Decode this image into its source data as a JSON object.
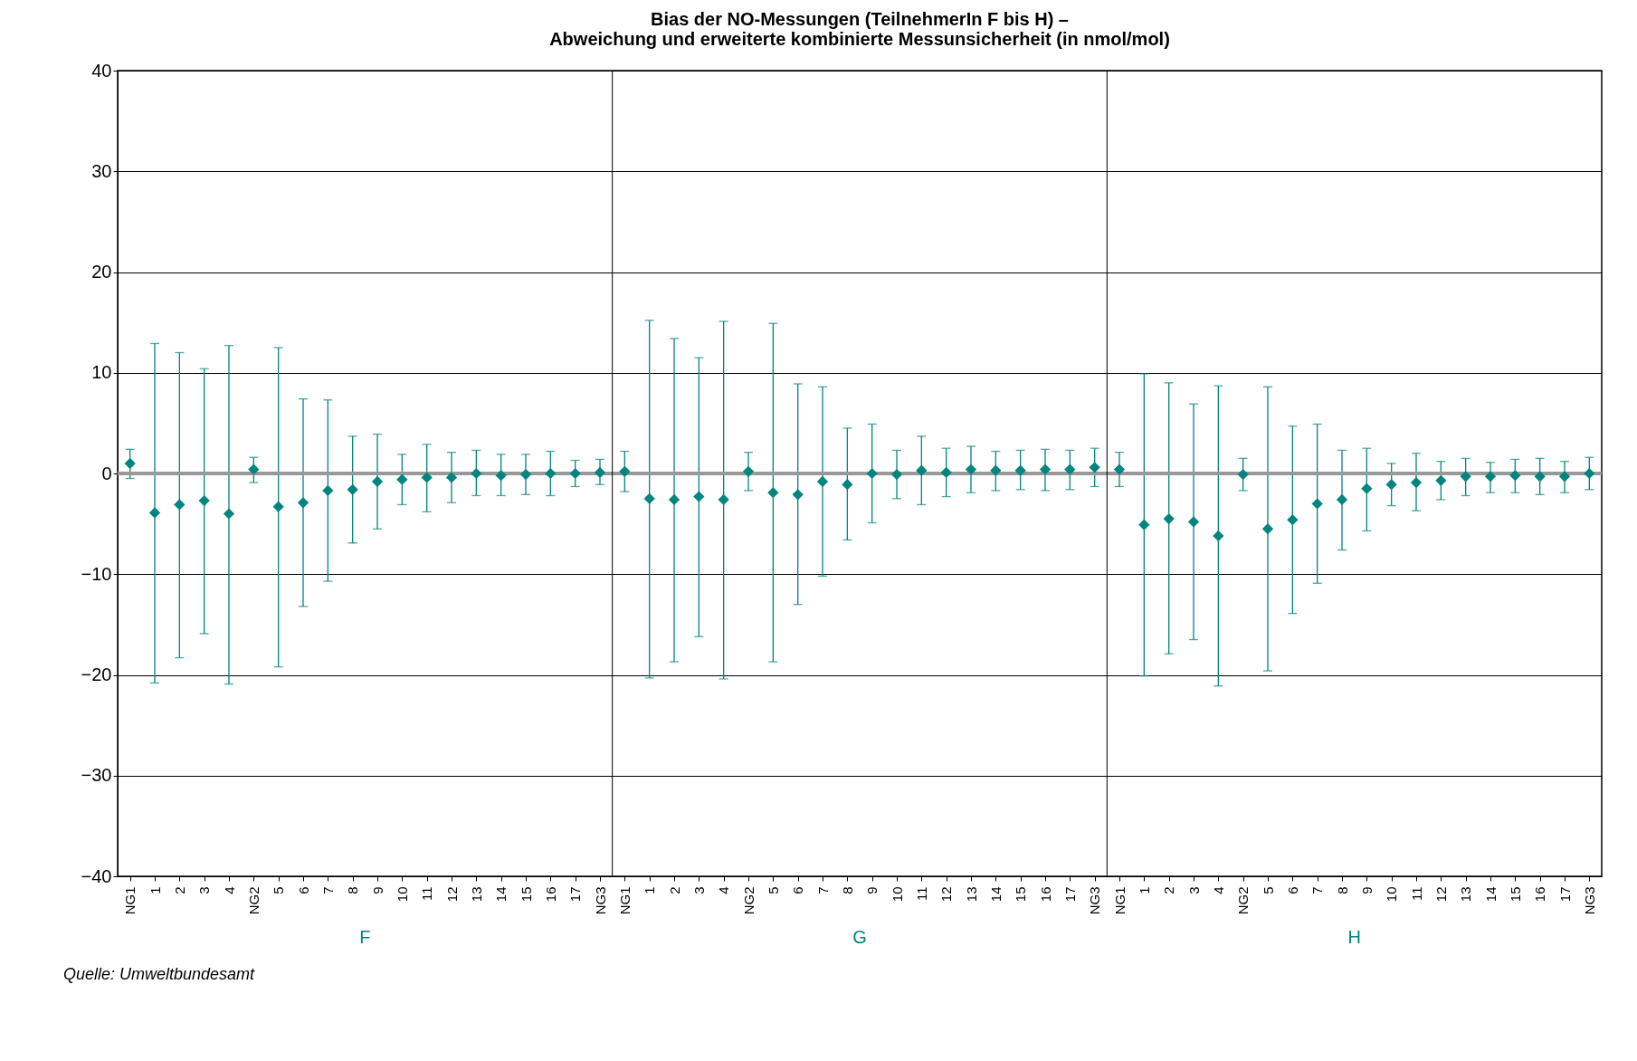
{
  "chart_data": {
    "type": "scatter",
    "title": "Bias der NO-Messungen (TeilnehmerIn F bis H) –\nAbweichung und erweiterte kombinierte Messunsicherheit (in nmol/mol)",
    "categories": [
      "NG1",
      "1",
      "2",
      "3",
      "4",
      "NG2",
      "5",
      "6",
      "7",
      "8",
      "9",
      "10",
      "11",
      "12",
      "13",
      "14",
      "15",
      "16",
      "17",
      "NG3",
      "NG1",
      "1",
      "2",
      "3",
      "4",
      "NG2",
      "5",
      "6",
      "7",
      "8",
      "9",
      "10",
      "11",
      "12",
      "13",
      "14",
      "15",
      "16",
      "17",
      "NG3",
      "NG1",
      "1",
      "2",
      "3",
      "4",
      "NG2",
      "5",
      "6",
      "7",
      "8",
      "9",
      "10",
      "11",
      "12",
      "13",
      "14",
      "15",
      "16",
      "17",
      "NG3"
    ],
    "series": [
      {
        "color": "#00857f",
        "values": [
          1.0,
          -3.9,
          -3.1,
          -2.7,
          -4.0,
          0.4,
          -3.3,
          -2.9,
          -1.7,
          -1.6,
          -0.8,
          -0.6,
          -0.4,
          -0.4,
          0.0,
          -0.2,
          -0.1,
          0.0,
          0.0,
          0.1,
          0.2,
          -2.5,
          -2.6,
          -2.3,
          -2.6,
          0.2,
          -1.9,
          -2.1,
          -0.8,
          -1.1,
          0.0,
          -0.1,
          0.3,
          0.1,
          0.4,
          0.3,
          0.3,
          0.4,
          0.4,
          0.6,
          0.4,
          -5.1,
          -4.5,
          -4.8,
          -6.2,
          -0.1,
          -5.5,
          -4.6,
          -3.0,
          -2.6,
          -1.5,
          -1.1,
          -0.9,
          -0.7,
          -0.3,
          -0.3,
          -0.2,
          -0.3,
          -0.3,
          0.0
        ],
        "errors": [
          [
            -0.5,
            2.4
          ],
          [
            -20.8,
            12.9
          ],
          [
            -18.3,
            12.0
          ],
          [
            -15.9,
            10.4
          ],
          [
            -20.9,
            12.7
          ],
          [
            -0.9,
            1.6
          ],
          [
            -19.2,
            12.5
          ],
          [
            -13.2,
            7.4
          ],
          [
            -10.7,
            7.3
          ],
          [
            -6.9,
            3.7
          ],
          [
            -5.5,
            3.9
          ],
          [
            -3.1,
            1.9
          ],
          [
            -3.8,
            2.9
          ],
          [
            -2.9,
            2.1
          ],
          [
            -2.2,
            2.3
          ],
          [
            -2.2,
            1.9
          ],
          [
            -2.1,
            1.9
          ],
          [
            -2.2,
            2.2
          ],
          [
            -1.3,
            1.3
          ],
          [
            -1.1,
            1.4
          ],
          [
            -1.8,
            2.2
          ],
          [
            -20.3,
            15.2
          ],
          [
            -18.7,
            13.4
          ],
          [
            -16.2,
            11.5
          ],
          [
            -20.4,
            15.1
          ],
          [
            -1.7,
            2.1
          ],
          [
            -18.7,
            14.9
          ],
          [
            -13.0,
            8.9
          ],
          [
            -10.2,
            8.6
          ],
          [
            -6.6,
            4.5
          ],
          [
            -4.9,
            4.9
          ],
          [
            -2.5,
            2.3
          ],
          [
            -3.1,
            3.7
          ],
          [
            -2.3,
            2.5
          ],
          [
            -1.9,
            2.7
          ],
          [
            -1.7,
            2.2
          ],
          [
            -1.6,
            2.3
          ],
          [
            -1.7,
            2.4
          ],
          [
            -1.6,
            2.3
          ],
          [
            -1.3,
            2.5
          ],
          [
            -1.3,
            2.1
          ],
          [
            -20.1,
            9.9
          ],
          [
            -17.9,
            9.0
          ],
          [
            -16.5,
            6.9
          ],
          [
            -21.1,
            8.7
          ],
          [
            -1.7,
            1.5
          ],
          [
            -19.6,
            8.6
          ],
          [
            -13.9,
            4.7
          ],
          [
            -10.9,
            4.9
          ],
          [
            -7.6,
            2.3
          ],
          [
            -5.7,
            2.5
          ],
          [
            -3.2,
            1.0
          ],
          [
            -3.7,
            2.0
          ],
          [
            -2.6,
            1.2
          ],
          [
            -2.2,
            1.5
          ],
          [
            -1.9,
            1.1
          ],
          [
            -1.9,
            1.4
          ],
          [
            -2.1,
            1.5
          ],
          [
            -1.9,
            1.2
          ],
          [
            -1.6,
            1.6
          ]
        ]
      }
    ],
    "ylim": [
      -40,
      40
    ],
    "yticks": [
      -40,
      -30,
      -20,
      -10,
      0,
      10,
      20,
      30,
      40
    ],
    "grid": "y",
    "legend": false,
    "marker": "diamond",
    "ref_lines": [
      {
        "axis": "y",
        "value": 0,
        "color": "#999999"
      }
    ],
    "annotations": [
      "F",
      "G",
      "H",
      "Quelle: Umweltbundesamt"
    ]
  }
}
